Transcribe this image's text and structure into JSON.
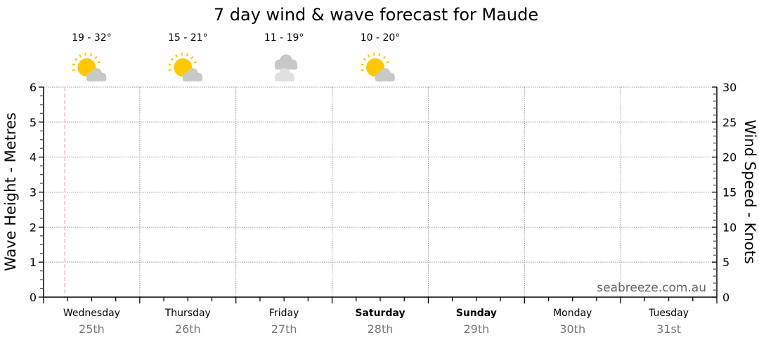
{
  "chart_data": {
    "type": "line",
    "title": "7 day wind & wave forecast for Maude",
    "ylabel_left": "Wave Height - Metres",
    "ylabel_right": "Wind Speed - Knots",
    "ylim_left": [
      0,
      6
    ],
    "ylim_right": [
      0,
      30
    ],
    "yticks_left": [
      0,
      1,
      2,
      3,
      4,
      5,
      6
    ],
    "yticks_right": [
      0,
      5,
      10,
      15,
      20,
      25,
      30
    ],
    "grid": true,
    "days": [
      {
        "name": "Wednesday",
        "date": "25th",
        "bold": false
      },
      {
        "name": "Thursday",
        "date": "26th",
        "bold": false
      },
      {
        "name": "Friday",
        "date": "27th",
        "bold": false
      },
      {
        "name": "Saturday",
        "date": "28th",
        "bold": true
      },
      {
        "name": "Sunday",
        "date": "29th",
        "bold": true
      },
      {
        "name": "Monday",
        "date": "30th",
        "bold": false
      },
      {
        "name": "Tuesday",
        "date": "31st",
        "bold": false
      }
    ],
    "weather": [
      {
        "temp": "19 - 32°",
        "icon": "partly-cloudy-icon"
      },
      {
        "temp": "15 - 21°",
        "icon": "partly-cloudy-icon"
      },
      {
        "temp": "11 - 19°",
        "icon": "cloudy-icon"
      },
      {
        "temp": "10 - 20°",
        "icon": "partly-cloudy-icon"
      }
    ],
    "now_marker_day": 0.22,
    "series": [],
    "watermark": "seabreeze.com.au"
  },
  "colors": {
    "now_marker": "#ff9999",
    "grid": "#999999",
    "date_text": "#777777",
    "sun": "#ffc800",
    "cloud": "#c8c8c8",
    "cloud_light": "#e0e0e0",
    "watermark": "#666666"
  }
}
